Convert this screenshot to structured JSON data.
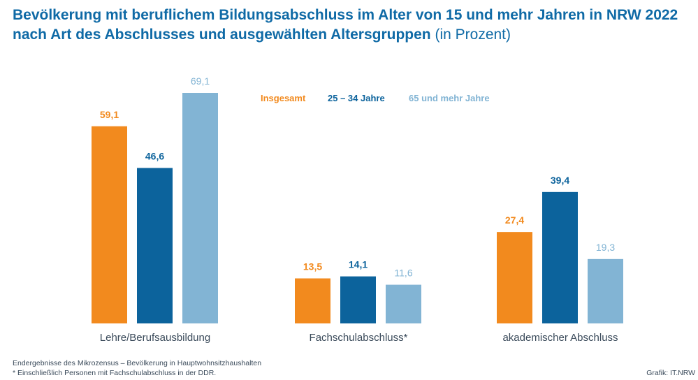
{
  "title": {
    "main": "Bevölkerung mit beruflichem Bildungsabschluss im Alter von 15 und mehr Jahren in NRW 2022 nach Art des Abschlusses und ausgewählten Altersgruppen",
    "unit": "(in Prozent)"
  },
  "colors": {
    "title": "#0f6aa6",
    "axis_text": "#3a4a5a"
  },
  "chart_data": {
    "type": "bar",
    "categories": [
      "Lehre/Berufsausbildung",
      "Fachschulabschluss*",
      "akademischer Abschluss"
    ],
    "series": [
      {
        "name": "Insgesamt",
        "color": "#f28a1e",
        "values": [
          59.1,
          13.5,
          27.4
        ],
        "labels": [
          "59,1",
          "13,5",
          "27,4"
        ]
      },
      {
        "name": "25 – 34 Jahre",
        "color": "#0c639c",
        "values": [
          46.6,
          14.1,
          39.4
        ],
        "labels": [
          "46,6",
          "14,1",
          "39,4"
        ]
      },
      {
        "name": "65 und mehr Jahre",
        "color": "#82b4d4",
        "values": [
          69.1,
          11.6,
          19.3
        ],
        "labels": [
          "69,1",
          "11,6",
          "19,3"
        ]
      }
    ],
    "ylim": [
      0,
      69.1
    ],
    "grid": false,
    "legend": "top-center"
  },
  "footnotes": {
    "source": "Endergebnisse des Mikrozensus – Bevölkerung in Hauptwohnsitzhaushalten",
    "asterisk": "* Einschließlich Personen mit Fachschulabschluss in der DDR."
  },
  "credit": "Grafik: IT.NRW"
}
